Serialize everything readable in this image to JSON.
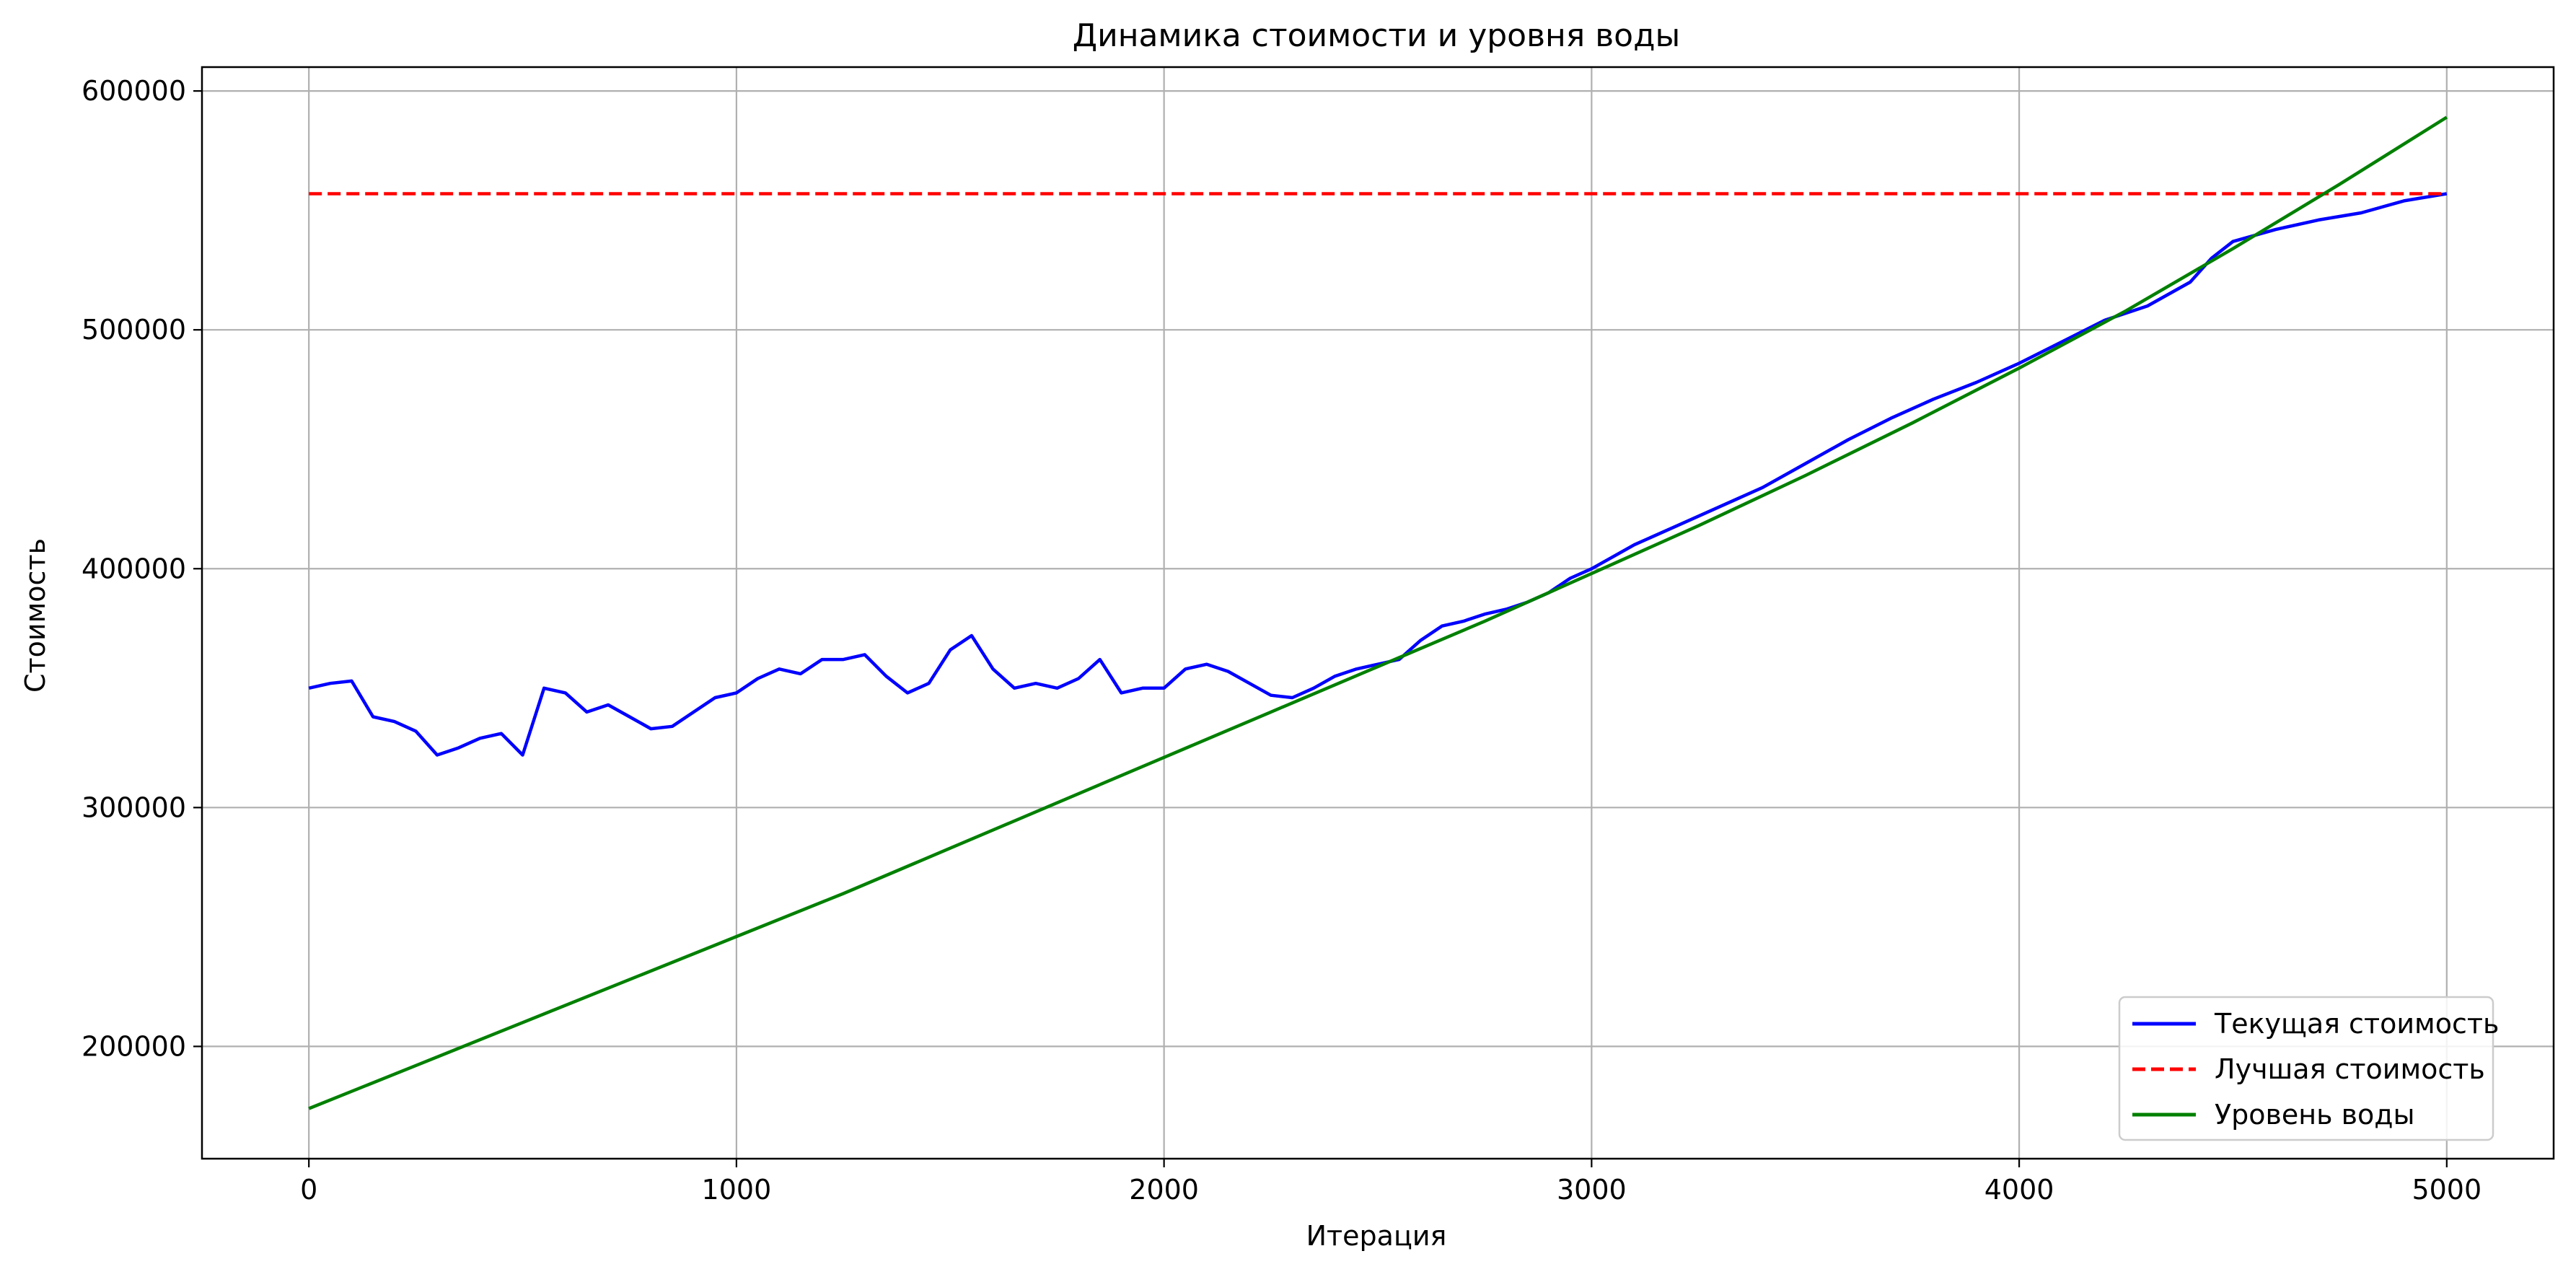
{
  "chart_data": {
    "type": "line",
    "title": "Динамика стоимости и уровня воды",
    "xlabel": "Итерация",
    "ylabel": "Стоимость",
    "xlim": [
      -250,
      5250
    ],
    "ylim": [
      153000,
      610000
    ],
    "xticks": [
      0,
      1000,
      2000,
      3000,
      4000,
      5000
    ],
    "xtick_labels": [
      "0",
      "1000",
      "2000",
      "3000",
      "4000",
      "5000"
    ],
    "yticks": [
      200000,
      300000,
      400000,
      500000,
      600000
    ],
    "ytick_labels": [
      "200000",
      "300000",
      "400000",
      "500000",
      "600000"
    ],
    "grid": true,
    "legend_position": "lower right",
    "series": [
      {
        "name": "Текущая стоимость",
        "color": "#0000ff",
        "style": "solid",
        "x": [
          0,
          50,
          100,
          150,
          200,
          250,
          300,
          350,
          400,
          450,
          500,
          550,
          600,
          650,
          700,
          750,
          800,
          850,
          900,
          950,
          1000,
          1050,
          1100,
          1150,
          1200,
          1250,
          1300,
          1350,
          1400,
          1450,
          1500,
          1550,
          1600,
          1650,
          1700,
          1750,
          1800,
          1850,
          1900,
          1950,
          2000,
          2050,
          2100,
          2150,
          2200,
          2250,
          2300,
          2350,
          2400,
          2450,
          2500,
          2550,
          2600,
          2650,
          2700,
          2750,
          2800,
          2850,
          2900,
          2950,
          3000,
          3100,
          3200,
          3300,
          3400,
          3500,
          3600,
          3700,
          3800,
          3900,
          4000,
          4100,
          4200,
          4300,
          4400,
          4450,
          4500,
          4600,
          4700,
          4800,
          4900,
          5000
        ],
        "y": [
          350000,
          352000,
          353000,
          338000,
          336000,
          332000,
          322000,
          325000,
          329000,
          331000,
          322000,
          350000,
          348000,
          340000,
          343000,
          338000,
          333000,
          334000,
          340000,
          346000,
          348000,
          354000,
          358000,
          356000,
          362000,
          362000,
          364000,
          355000,
          348000,
          352000,
          366000,
          372000,
          358000,
          350000,
          352000,
          350000,
          354000,
          362000,
          348000,
          350000,
          350000,
          358000,
          360000,
          357000,
          352000,
          347000,
          346000,
          350000,
          355000,
          358000,
          360000,
          362000,
          370000,
          376000,
          378000,
          381000,
          383000,
          386000,
          390000,
          396000,
          400000,
          410000,
          418000,
          426000,
          434000,
          444000,
          454000,
          463000,
          471000,
          478000,
          486000,
          495000,
          504000,
          510000,
          520000,
          530000,
          537000,
          542000,
          546000,
          549000,
          554000,
          557000
        ]
      },
      {
        "name": "Лучшая стоимость",
        "color": "#ff0000",
        "style": "dashed",
        "x": [
          0,
          5000
        ],
        "y": [
          557000,
          557000
        ]
      },
      {
        "name": "Уровень воды",
        "color": "#008000",
        "style": "solid",
        "x": [
          0,
          250,
          500,
          750,
          1000,
          1250,
          1500,
          1750,
          2000,
          2250,
          2500,
          2750,
          3000,
          3250,
          3500,
          3750,
          4000,
          4250,
          4500,
          4750,
          5000
        ],
        "y": [
          174000,
          192000,
          210000,
          228000,
          246000,
          264000,
          283000,
          302000,
          321000,
          340000,
          359000,
          378000,
          398000,
          418000,
          439000,
          461000,
          484000,
          508000,
          534000,
          561000,
          589000
        ]
      }
    ]
  }
}
